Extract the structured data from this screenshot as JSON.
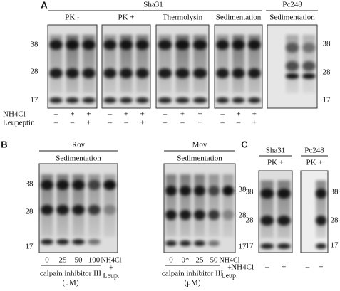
{
  "panel_a": {
    "letter": "A",
    "groups": [
      "Sha31",
      "Pc248"
    ],
    "blots": [
      {
        "label": "PK -",
        "nh4cl": [
          "–",
          "+",
          "+"
        ],
        "leupeptin": [
          "–",
          "–",
          "+"
        ]
      },
      {
        "label": "PK +",
        "nh4cl": [
          "–",
          "+",
          "+"
        ],
        "leupeptin": [
          "–",
          "–",
          "+"
        ]
      },
      {
        "label": "Thermolysin",
        "nh4cl": [
          "–",
          "+",
          "+"
        ],
        "leupeptin": [
          "–",
          "–",
          "+"
        ]
      },
      {
        "label": "Sedimentation",
        "nh4cl": [
          "–",
          "+",
          "+"
        ],
        "leupeptin": [
          "–",
          "–",
          "+"
        ]
      },
      {
        "label": "Sedimentation"
      }
    ],
    "markers_left": [
      "38",
      "28",
      "17"
    ],
    "markers_right": [
      "38",
      "28",
      "17"
    ],
    "row_labels": [
      "NH4Cl",
      "Leupeptin"
    ]
  },
  "panel_b": {
    "letter": "B",
    "blots": [
      {
        "title": "Rov",
        "label": "Sedimentation",
        "lanes": [
          "0",
          "25",
          "50",
          "100"
        ],
        "control": [
          "NH4Cl",
          "+",
          "Leup."
        ],
        "inhibitor": [
          "calpain inhibitor III",
          "(μM)"
        ],
        "markers": [
          "38",
          "28",
          "17"
        ]
      },
      {
        "title": "Mov",
        "label": "Sedimentation",
        "lanes": [
          "0",
          "0*",
          "25",
          "50"
        ],
        "control": [
          "NH4Cl",
          "+",
          "Leup."
        ],
        "inhibitor": [
          "calpain inhibitor III",
          "(μM)"
        ],
        "markers": [
          "38",
          "28",
          "17"
        ]
      }
    ]
  },
  "panel_c": {
    "letter": "C",
    "blots": [
      {
        "title": "Sha31",
        "label": "PK +",
        "nh4cl": [
          "–",
          "+"
        ]
      },
      {
        "title": "Pc248",
        "label": "PK +",
        "nh4cl": [
          "–",
          "+"
        ]
      }
    ],
    "markers_left": [
      "38",
      "28",
      "17"
    ],
    "markers_right": [
      "38",
      "28",
      "17"
    ],
    "row_label": "NH4Cl"
  }
}
